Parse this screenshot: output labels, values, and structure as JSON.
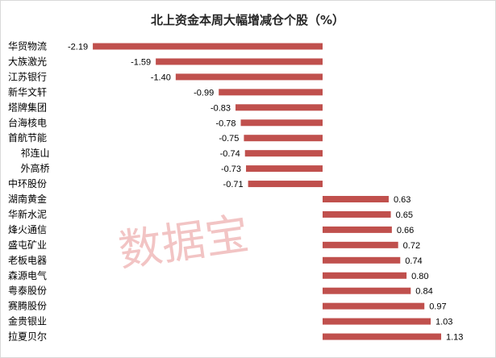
{
  "chart_data": {
    "type": "bar",
    "orientation": "horizontal",
    "title": "北上资金本周大幅增减仓个股（%）",
    "categories": [
      "华贸物流",
      "大族激光",
      "江苏银行",
      "新华文轩",
      "塔牌集团",
      "台海核电",
      "首航节能",
      "祁连山",
      "外高桥",
      "中环股份",
      "湖南黄金",
      "华新水泥",
      "烽火通信",
      "盛屯矿业",
      "老板电器",
      "森源电气",
      "粤泰股份",
      "赛腾股份",
      "金贵银业",
      "拉夏贝尔"
    ],
    "values": [
      -2.19,
      -1.59,
      -1.4,
      -0.99,
      -0.83,
      -0.78,
      -0.75,
      -0.74,
      -0.73,
      -0.71,
      0.63,
      0.65,
      0.66,
      0.72,
      0.74,
      0.8,
      0.84,
      0.97,
      1.03,
      1.13
    ],
    "value_labels": [
      "-2.19",
      "-1.59",
      "-1.40",
      "-0.99",
      "-0.83",
      "-0.78",
      "-0.75",
      "-0.74",
      "-0.73",
      "-0.71",
      "0.63",
      "0.65",
      "0.66",
      "0.72",
      "0.74",
      "0.80",
      "0.84",
      "0.97",
      "1.03",
      "1.13"
    ],
    "xlim": [
      -2.5,
      1.5
    ],
    "bar_color": "#c0504d",
    "grid": false,
    "legend": "none",
    "watermark": "数据宝"
  }
}
